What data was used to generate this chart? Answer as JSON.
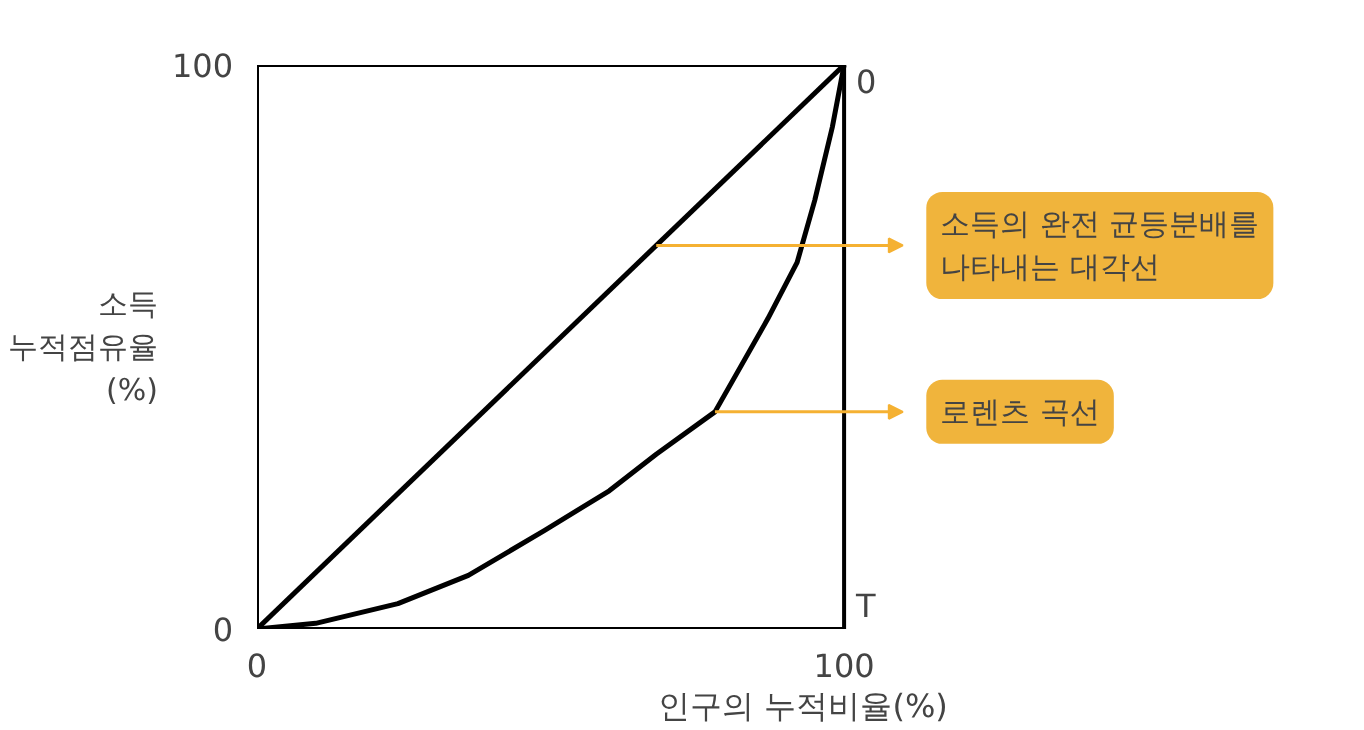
{
  "chart_data": {
    "type": "line",
    "xlabel": "인구의 누적비율(%)",
    "ylabel": "소득\n누적점유율\n(%)",
    "xlim": [
      0,
      100
    ],
    "ylim": [
      0,
      100
    ],
    "xticks": [
      0,
      100
    ],
    "yticks": [
      0,
      100
    ],
    "series": [
      {
        "color": "#000000",
        "x": [
          0,
          100
        ],
        "values": [
          0,
          100
        ]
      },
      {
        "color": "#000000",
        "x": [
          0,
          10,
          24,
          36,
          49,
          60,
          68,
          78,
          87,
          92,
          95,
          98,
          100
        ],
        "values": [
          0,
          1,
          4.5,
          9.5,
          17.5,
          24.5,
          31,
          38.5,
          55,
          65,
          76,
          89,
          100
        ]
      }
    ],
    "annotations": [
      "0",
      "T",
      {
        "text": "소득의 완전 균등분배를\n나타내는 대각선",
        "x": 68,
        "y": 68
      },
      {
        "text": "로렌츠 곡선",
        "x": 78,
        "y": 38.5
      }
    ],
    "line_style": "solid",
    "marker": "none"
  }
}
